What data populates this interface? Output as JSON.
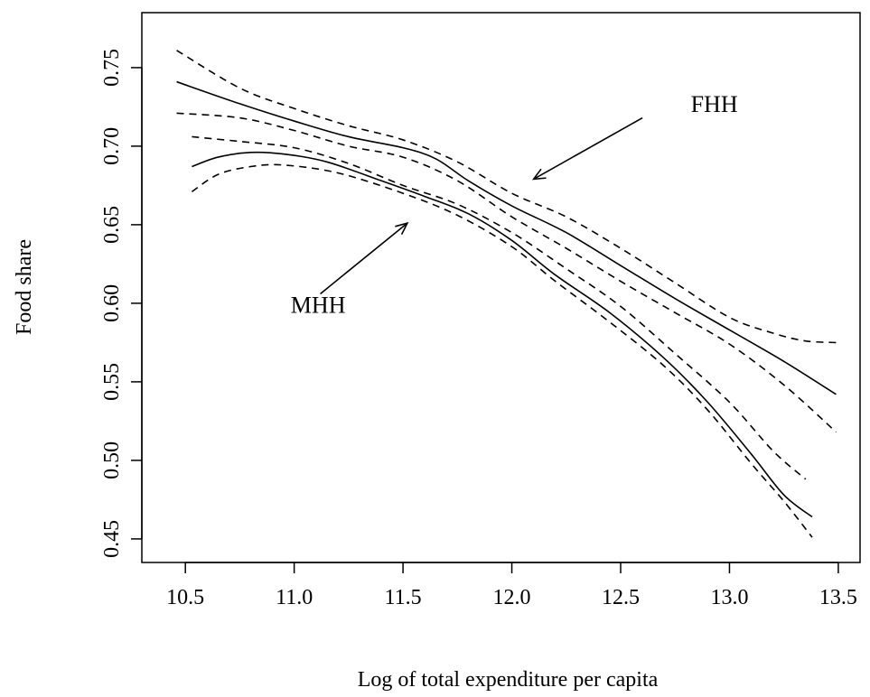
{
  "chart_data": {
    "type": "line",
    "title": "",
    "xlabel": "Log of total expenditure per capita",
    "ylabel": "Food share",
    "xlim": [
      10.3,
      13.6
    ],
    "ylim": [
      0.435,
      0.785
    ],
    "x_ticks": [
      10.5,
      11.0,
      11.5,
      12.0,
      12.5,
      13.0,
      13.5
    ],
    "x_tick_labels": [
      "10.5",
      "11.0",
      "11.5",
      "12.0",
      "12.5",
      "13.0",
      "13.5"
    ],
    "y_ticks": [
      0.45,
      0.5,
      0.55,
      0.6,
      0.65,
      0.7,
      0.75
    ],
    "y_tick_labels": [
      "0.45",
      "0.50",
      "0.55",
      "0.60",
      "0.65",
      "0.70",
      "0.75"
    ],
    "grid": false,
    "series": [
      {
        "group": "FHH",
        "style": "solid",
        "points": [
          [
            10.46,
            0.741
          ],
          [
            10.75,
            0.727
          ],
          [
            11.0,
            0.716
          ],
          [
            11.25,
            0.706
          ],
          [
            11.5,
            0.699
          ],
          [
            11.65,
            0.692
          ],
          [
            11.8,
            0.678
          ],
          [
            12.0,
            0.662
          ],
          [
            12.25,
            0.645
          ],
          [
            12.5,
            0.624
          ],
          [
            12.75,
            0.603
          ],
          [
            13.0,
            0.583
          ],
          [
            13.25,
            0.563
          ],
          [
            13.49,
            0.542
          ]
        ]
      },
      {
        "group": "FHH",
        "style": "dashed",
        "points": [
          [
            10.46,
            0.761
          ],
          [
            10.75,
            0.737
          ],
          [
            11.0,
            0.724
          ],
          [
            11.25,
            0.713
          ],
          [
            11.5,
            0.704
          ],
          [
            11.75,
            0.69
          ],
          [
            12.0,
            0.67
          ],
          [
            12.25,
            0.655
          ],
          [
            12.5,
            0.635
          ],
          [
            12.75,
            0.613
          ],
          [
            13.0,
            0.591
          ],
          [
            13.2,
            0.581
          ],
          [
            13.35,
            0.576
          ],
          [
            13.49,
            0.575
          ]
        ]
      },
      {
        "group": "FHH",
        "style": "dashed",
        "points": [
          [
            10.46,
            0.721
          ],
          [
            10.75,
            0.718
          ],
          [
            11.0,
            0.71
          ],
          [
            11.25,
            0.7
          ],
          [
            11.5,
            0.693
          ],
          [
            11.75,
            0.678
          ],
          [
            12.0,
            0.655
          ],
          [
            12.25,
            0.635
          ],
          [
            12.5,
            0.614
          ],
          [
            12.75,
            0.594
          ],
          [
            13.0,
            0.574
          ],
          [
            13.25,
            0.548
          ],
          [
            13.49,
            0.518
          ]
        ]
      },
      {
        "group": "MHH",
        "style": "solid",
        "points": [
          [
            10.53,
            0.687
          ],
          [
            10.65,
            0.693
          ],
          [
            10.8,
            0.696
          ],
          [
            10.95,
            0.695
          ],
          [
            11.15,
            0.69
          ],
          [
            11.4,
            0.678
          ],
          [
            11.6,
            0.668
          ],
          [
            11.8,
            0.657
          ],
          [
            12.0,
            0.64
          ],
          [
            12.2,
            0.618
          ],
          [
            12.45,
            0.594
          ],
          [
            12.7,
            0.565
          ],
          [
            12.9,
            0.537
          ],
          [
            13.1,
            0.504
          ],
          [
            13.25,
            0.478
          ],
          [
            13.38,
            0.464
          ]
        ]
      },
      {
        "group": "MHH",
        "style": "dashed",
        "points": [
          [
            10.53,
            0.706
          ],
          [
            10.75,
            0.703
          ],
          [
            11.0,
            0.699
          ],
          [
            11.25,
            0.689
          ],
          [
            11.5,
            0.675
          ],
          [
            11.75,
            0.663
          ],
          [
            12.0,
            0.645
          ],
          [
            12.25,
            0.622
          ],
          [
            12.5,
            0.598
          ],
          [
            12.75,
            0.568
          ],
          [
            13.0,
            0.537
          ],
          [
            13.2,
            0.506
          ],
          [
            13.35,
            0.488
          ]
        ]
      },
      {
        "group": "MHH",
        "style": "dashed",
        "points": [
          [
            10.53,
            0.671
          ],
          [
            10.65,
            0.682
          ],
          [
            10.8,
            0.687
          ],
          [
            10.95,
            0.688
          ],
          [
            11.2,
            0.683
          ],
          [
            11.5,
            0.67
          ],
          [
            11.75,
            0.656
          ],
          [
            12.0,
            0.636
          ],
          [
            12.2,
            0.614
          ],
          [
            12.45,
            0.588
          ],
          [
            12.7,
            0.56
          ],
          [
            12.9,
            0.532
          ],
          [
            13.1,
            0.498
          ],
          [
            13.25,
            0.474
          ],
          [
            13.38,
            0.451
          ]
        ]
      }
    ],
    "annotations": [
      {
        "text": "FHH",
        "label_at": [
          12.93,
          0.727
        ],
        "arrow_from": [
          12.6,
          0.718
        ],
        "arrow_to": [
          12.1,
          0.679
        ]
      },
      {
        "text": "MHH",
        "label_at": [
          11.11,
          0.599
        ],
        "arrow_from": [
          11.12,
          0.606
        ],
        "arrow_to": [
          11.52,
          0.651
        ]
      }
    ]
  }
}
